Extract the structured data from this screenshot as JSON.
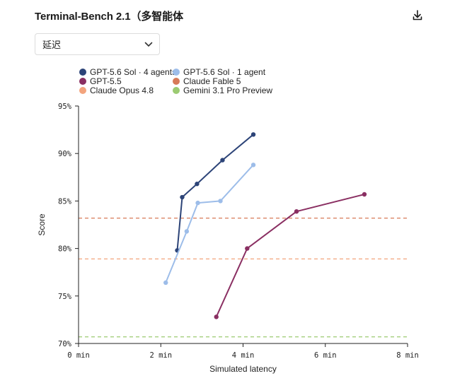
{
  "header": {
    "title": "Terminal-Bench 2.1（多智能体",
    "download_icon": "download-icon"
  },
  "filter": {
    "selected": "延迟",
    "icon": "chevron-down-icon"
  },
  "chart_data": {
    "type": "line",
    "title": "",
    "xlabel": "Simulated latency",
    "ylabel": "Score",
    "xlim": [
      0,
      8
    ],
    "ylim": [
      70,
      95
    ],
    "x_ticks": [
      {
        "value": 0,
        "label": "0 min"
      },
      {
        "value": 2,
        "label": "2 min"
      },
      {
        "value": 4,
        "label": "4 min"
      },
      {
        "value": 6,
        "label": "6 min"
      },
      {
        "value": 8,
        "label": "8 min"
      }
    ],
    "y_ticks": [
      {
        "value": 70,
        "label": "70%"
      },
      {
        "value": 75,
        "label": "75%"
      },
      {
        "value": 80,
        "label": "80%"
      },
      {
        "value": 85,
        "label": "85%"
      },
      {
        "value": 90,
        "label": "90%"
      },
      {
        "value": 95,
        "label": "95%"
      }
    ],
    "grid": false,
    "legend_position": "top-left",
    "series": [
      {
        "name": "GPT-5.6 Sol · 4 agents",
        "color": "#2d4478",
        "kind": "line",
        "points": [
          [
            2.4,
            79.8
          ],
          [
            2.52,
            85.4
          ],
          [
            2.88,
            86.8
          ],
          [
            3.5,
            89.3
          ],
          [
            4.25,
            92.0
          ]
        ]
      },
      {
        "name": "GPT-5.6 Sol · 1 agent",
        "color": "#9dbde9",
        "kind": "line",
        "points": [
          [
            2.12,
            76.4
          ],
          [
            2.63,
            81.8
          ],
          [
            2.9,
            84.8
          ],
          [
            3.45,
            85.0
          ],
          [
            4.25,
            88.8
          ]
        ]
      },
      {
        "name": "GPT-5.5",
        "color": "#8a2f62",
        "kind": "line",
        "points": [
          [
            3.35,
            72.8
          ],
          [
            4.1,
            80.0
          ],
          [
            5.3,
            83.9
          ],
          [
            6.95,
            85.7
          ]
        ]
      },
      {
        "name": "Claude Fable 5",
        "color": "#d77a58",
        "kind": "hline",
        "y": 83.2
      },
      {
        "name": "Claude Opus 4.8",
        "color": "#f3a47d",
        "kind": "hline",
        "y": 78.9
      },
      {
        "name": "Gemini 3.1 Pro Preview",
        "color": "#9ccb72",
        "kind": "hline",
        "y": 70.7
      }
    ]
  }
}
